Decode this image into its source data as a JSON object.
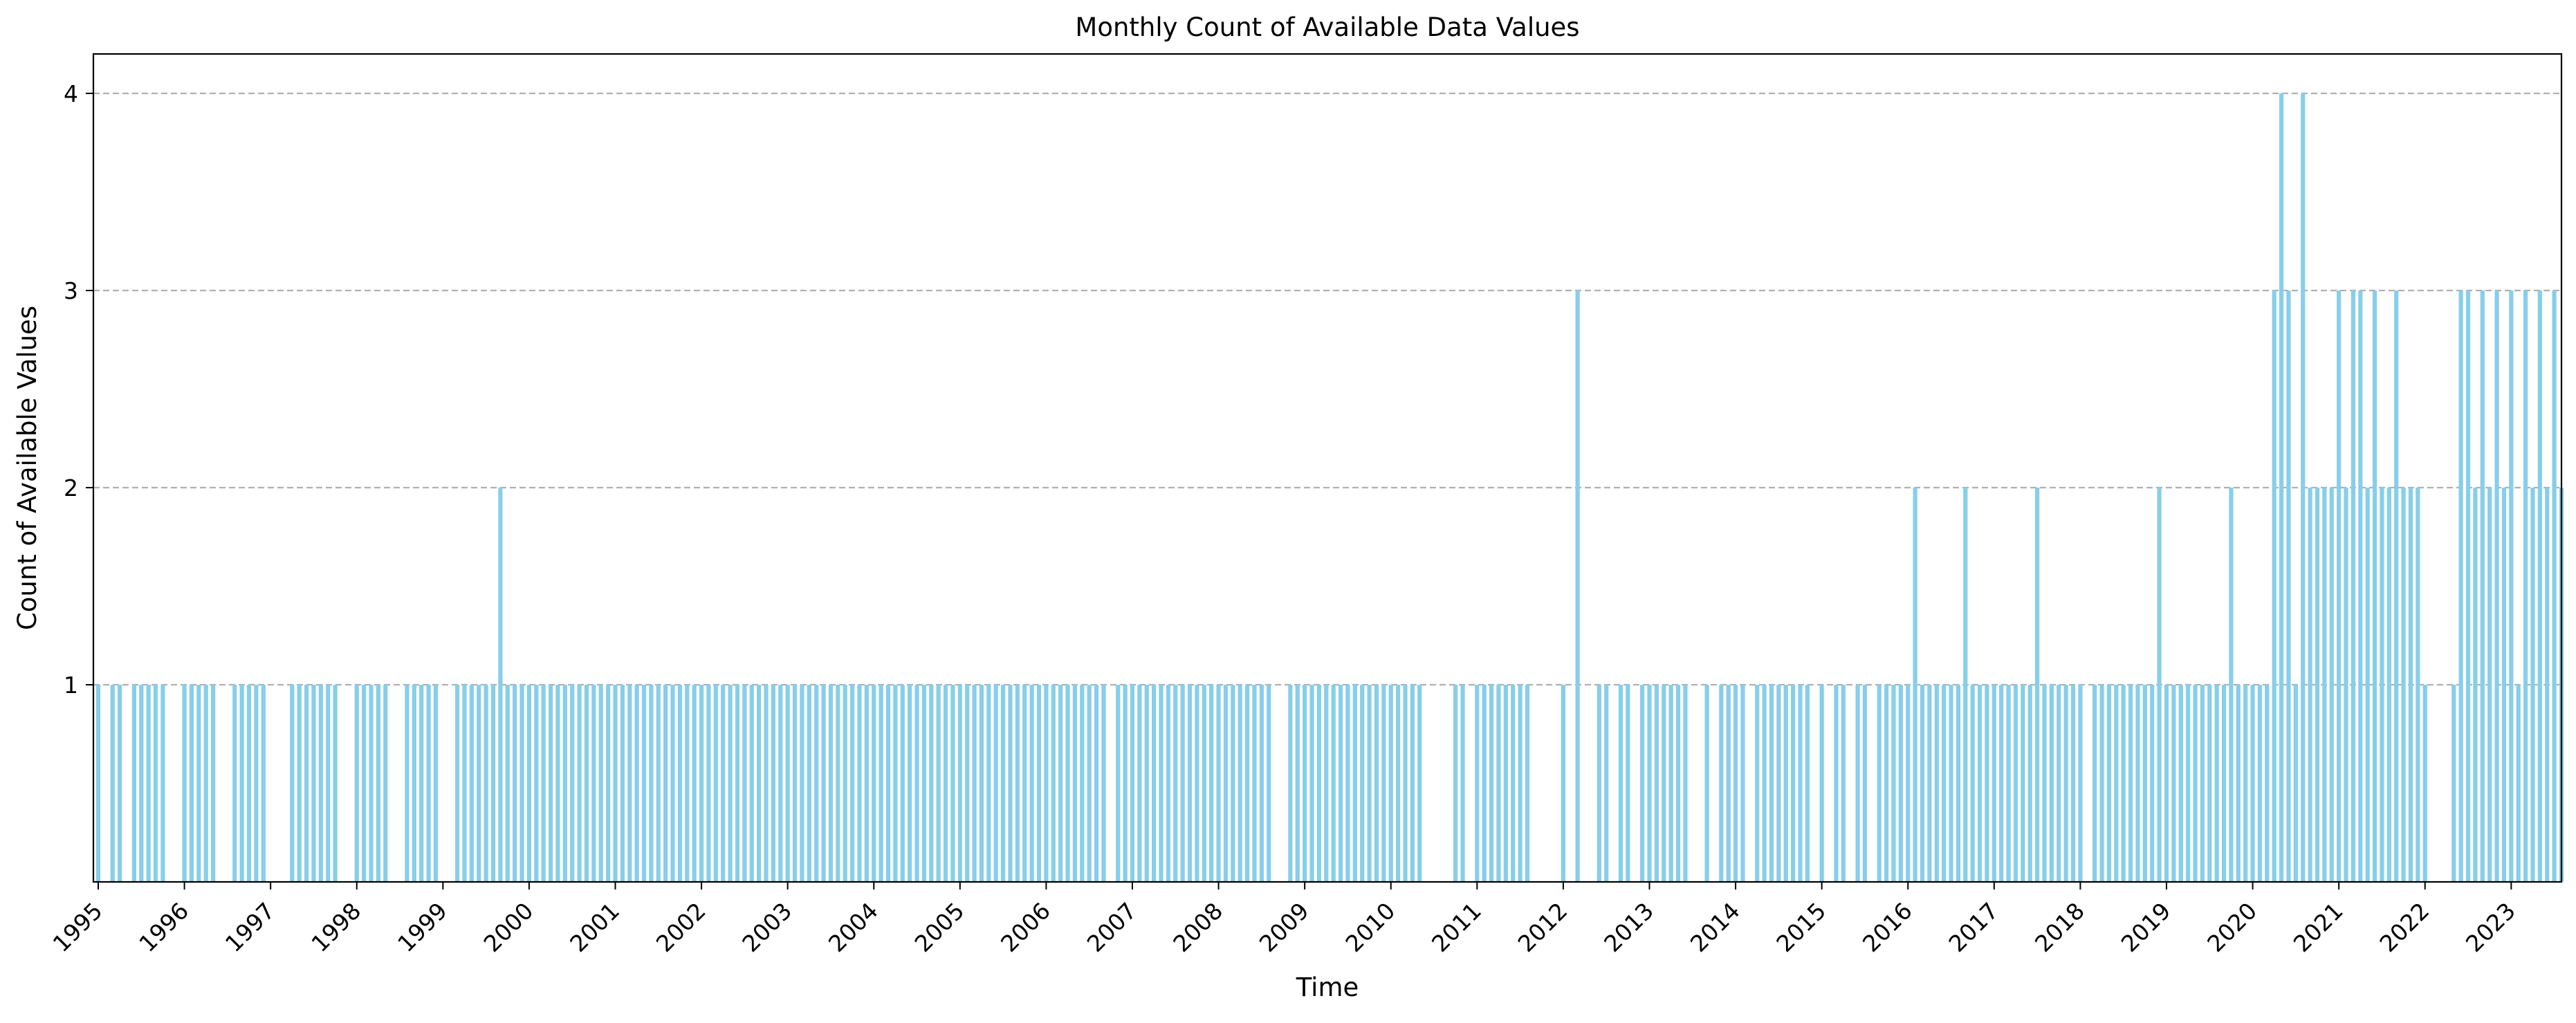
{
  "chart_data": {
    "type": "bar",
    "title": "Monthly Count of Available Data Values",
    "xlabel": "Time",
    "ylabel": "Count of Available Values",
    "xlim": [
      "1995-01",
      "2023-08"
    ],
    "ylim": [
      0,
      4.2
    ],
    "yticks": [
      1,
      2,
      3,
      4
    ],
    "xtick_labels": [
      "1995",
      "1996",
      "1997",
      "1998",
      "1999",
      "2000",
      "2001",
      "2002",
      "2003",
      "2004",
      "2005",
      "2006",
      "2007",
      "2008",
      "2009",
      "2010",
      "2011",
      "2012",
      "2013",
      "2014",
      "2015",
      "2016",
      "2017",
      "2018",
      "2019",
      "2020",
      "2021",
      "2022",
      "2023"
    ],
    "grid": "y-dashed",
    "bar_color": "#87CEEB",
    "series": [
      {
        "values_by_year": {
          "1995": [
            1,
            0,
            1,
            1,
            0,
            1,
            1,
            1,
            1,
            1,
            0,
            0
          ],
          "1996": [
            1,
            1,
            1,
            1,
            1,
            0,
            0,
            1,
            1,
            1,
            1,
            1
          ],
          "1997": [
            0,
            0,
            0,
            1,
            1,
            1,
            1,
            1,
            1,
            1,
            0,
            0
          ],
          "1998": [
            1,
            1,
            1,
            1,
            1,
            0,
            0,
            1,
            1,
            1,
            1,
            1
          ],
          "1999": [
            0,
            0,
            1,
            1,
            1,
            1,
            1,
            1,
            2,
            1,
            1,
            1
          ],
          "2000": [
            1,
            1,
            1,
            1,
            1,
            1,
            1,
            1,
            1,
            1,
            1,
            1
          ],
          "2001": [
            1,
            1,
            1,
            1,
            1,
            1,
            1,
            1,
            1,
            1,
            1,
            1
          ],
          "2002": [
            1,
            1,
            1,
            1,
            1,
            1,
            1,
            1,
            1,
            1,
            1,
            1
          ],
          "2003": [
            1,
            1,
            1,
            1,
            1,
            1,
            1,
            1,
            1,
            1,
            1,
            1
          ],
          "2004": [
            1,
            1,
            1,
            1,
            1,
            1,
            1,
            1,
            1,
            1,
            1,
            1
          ],
          "2005": [
            1,
            1,
            1,
            1,
            1,
            1,
            1,
            1,
            1,
            1,
            1,
            1
          ],
          "2006": [
            1,
            1,
            1,
            1,
            1,
            1,
            1,
            1,
            1,
            0,
            1,
            1
          ],
          "2007": [
            1,
            1,
            1,
            1,
            1,
            1,
            1,
            1,
            1,
            1,
            1,
            1
          ],
          "2008": [
            1,
            1,
            1,
            1,
            1,
            1,
            1,
            1,
            0,
            0,
            1,
            1
          ],
          "2009": [
            1,
            1,
            1,
            1,
            1,
            1,
            1,
            1,
            1,
            1,
            1,
            1
          ],
          "2010": [
            1,
            1,
            1,
            1,
            1,
            0,
            0,
            0,
            0,
            1,
            1,
            0
          ],
          "2011": [
            1,
            1,
            1,
            1,
            1,
            1,
            1,
            1,
            0,
            0,
            0,
            0
          ],
          "2012": [
            1,
            0,
            3,
            0,
            0,
            1,
            1,
            0,
            1,
            1,
            0,
            1
          ],
          "2013": [
            1,
            1,
            1,
            1,
            1,
            1,
            0,
            0,
            1,
            0,
            1,
            1
          ],
          "2014": [
            1,
            1,
            0,
            1,
            1,
            1,
            1,
            1,
            1,
            1,
            1,
            0
          ],
          "2015": [
            1,
            0,
            1,
            1,
            0,
            1,
            1,
            0,
            1,
            1,
            1,
            1
          ],
          "2016": [
            1,
            2,
            1,
            1,
            1,
            1,
            1,
            1,
            2,
            1,
            1,
            1
          ],
          "2017": [
            1,
            1,
            1,
            1,
            1,
            1,
            2,
            1,
            1,
            1,
            1,
            1
          ],
          "2018": [
            1,
            0,
            1,
            1,
            1,
            1,
            1,
            1,
            1,
            1,
            1,
            2
          ],
          "2019": [
            1,
            1,
            1,
            1,
            1,
            1,
            1,
            1,
            1,
            2,
            1,
            1
          ],
          "2020": [
            1,
            1,
            1,
            3,
            4,
            3,
            1,
            4,
            2,
            2,
            2,
            2
          ],
          "2021": [
            3,
            2,
            3,
            3,
            2,
            3,
            2,
            2,
            3,
            2,
            2,
            2
          ],
          "2022": [
            1,
            0,
            0,
            0,
            1,
            3,
            3,
            2,
            3,
            2,
            3,
            2
          ],
          "2023": [
            3,
            1,
            3,
            2,
            3,
            2,
            3,
            2
          ]
        }
      }
    ]
  }
}
